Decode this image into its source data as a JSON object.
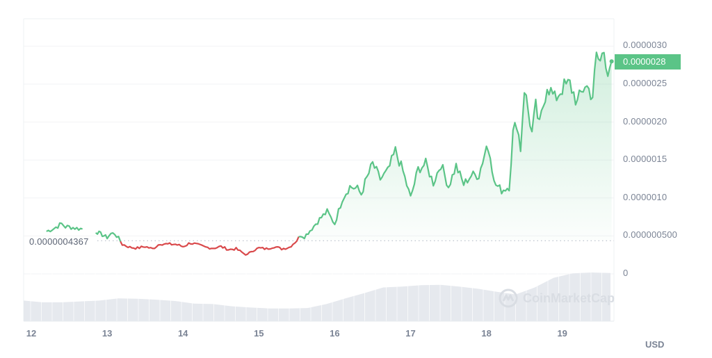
{
  "chart_data": {
    "type": "line",
    "title": "",
    "xlabel": "",
    "ylabel": "",
    "currency": "USD",
    "ylim": [
      0,
      3.3e-06
    ],
    "grid": true,
    "y_ticks": [
      "0.0000030",
      "0.0000025",
      "0.0000020",
      "0.0000015",
      "0.0000010",
      "0.000000500",
      "0"
    ],
    "x_ticks": [
      "12",
      "13",
      "14",
      "15",
      "16",
      "17",
      "18",
      "19"
    ],
    "baseline_value": 4.367e-07,
    "baseline_label": "0.0000004367",
    "current_price": 2.8e-06,
    "current_price_label": "0.0000028",
    "colors": {
      "up": "#5bc487",
      "down": "#d9494b",
      "baseline": "#b8bec9",
      "volume": "#e6e9ee",
      "grid": "#f2f3f5"
    },
    "x_day": [
      12.2,
      12.3,
      12.4,
      12.45,
      12.5,
      12.6,
      12.7,
      12.8,
      12.85,
      13.0,
      13.05,
      13.1,
      13.15,
      13.2,
      13.3,
      13.4,
      13.5,
      13.6,
      13.7,
      13.8,
      13.9,
      14.0,
      14.1,
      14.2,
      14.3,
      14.4,
      14.5,
      14.6,
      14.7,
      14.8,
      14.85,
      14.9,
      15.0,
      15.1,
      15.2,
      15.3,
      15.4,
      15.5,
      15.55,
      15.6,
      15.7,
      15.8,
      15.9,
      16.0,
      16.1,
      16.2,
      16.3,
      16.35,
      16.4,
      16.5,
      16.6,
      16.7,
      16.8,
      16.9,
      17.0,
      17.1,
      17.2,
      17.3,
      17.4,
      17.5,
      17.6,
      17.7,
      17.8,
      17.9,
      18.0,
      18.05,
      18.1,
      18.2,
      18.3,
      18.35,
      18.4,
      18.45,
      18.5,
      18.6,
      18.65,
      18.7,
      18.8,
      18.9,
      19.0,
      19.1,
      19.2,
      19.3,
      19.4,
      19.45,
      19.5,
      19.55,
      19.6,
      19.65
    ],
    "price": [
      5.6e-07,
      6e-07,
      6.6e-07,
      6.2e-07,
      6.2e-07,
      6e-07,
      5.9e-07,
      null,
      5.6e-07,
      4.8e-07,
      5.3e-07,
      5.3e-07,
      4.7e-07,
      3.9e-07,
      3.5e-07,
      3.4e-07,
      3.6e-07,
      3.3e-07,
      4e-07,
      3.9e-07,
      3.9e-07,
      3.6e-07,
      4.1e-07,
      3.8e-07,
      3.5e-07,
      3.4e-07,
      3.6e-07,
      3.2e-07,
      3.3e-07,
      2.7e-07,
      2.5e-07,
      3e-07,
      3.4e-07,
      3.3e-07,
      3.6e-07,
      3.3e-07,
      3.5e-07,
      4.4e-07,
      5.1e-07,
      4.9e-07,
      6e-07,
      7.2e-07,
      8.2e-07,
      6.6e-07,
      9.9e-07,
      1.15e-06,
      1.12e-06,
      1.05e-06,
      1.2e-06,
      1.45e-06,
      1.25e-06,
      1.35e-06,
      1.62e-06,
      1.35e-06,
      1e-06,
      1.38e-06,
      1.45e-06,
      1.2e-06,
      1.45e-06,
      1.15e-06,
      1.42e-06,
      1.18e-06,
      1.3e-06,
      1.3e-06,
      1.68e-06,
      1.6e-06,
      1.2e-06,
      1.1e-06,
      1.15e-06,
      1.85e-06,
      2e-06,
      1.65e-06,
      2.45e-06,
      1.85e-06,
      2.2e-06,
      1.95e-06,
      2.5e-06,
      2.3e-06,
      2.45e-06,
      2.5e-06,
      2.25e-06,
      2.5e-06,
      2.35e-06,
      2.85e-06,
      2.8e-06,
      2.95e-06,
      2.7e-06,
      2.8e-06
    ],
    "volume_relative": [
      0.28,
      0.24,
      0.24,
      0.26,
      0.28,
      0.33,
      0.32,
      0.3,
      0.27,
      0.21,
      0.2,
      0.15,
      0.12,
      0.1,
      0.1,
      0.11,
      0.2,
      0.33,
      0.45,
      0.58,
      0.6,
      0.63,
      0.64,
      0.6,
      0.55,
      0.48,
      0.42,
      0.58,
      0.8,
      0.9,
      0.92,
      0.91
    ]
  },
  "watermark": {
    "text": "CoinMarketCap",
    "icon": "coinmarketcap-logo-icon"
  }
}
